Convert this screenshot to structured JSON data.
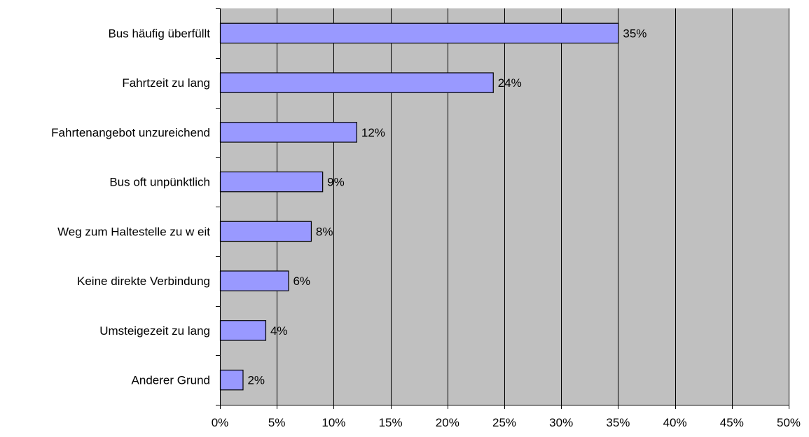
{
  "chart_data": {
    "type": "bar",
    "orientation": "horizontal",
    "categories": [
      "Bus häufig überfüllt",
      "Fahrtzeit zu lang",
      "Fahrtenangebot unzureichend",
      "Bus oft unpünktlich",
      "Weg zum Haltestelle zu w eit",
      "Keine direkte Verbindung",
      "Umsteigezeit zu lang",
      "Anderer Grund"
    ],
    "values": [
      35,
      24,
      12,
      9,
      8,
      6,
      4,
      2
    ],
    "value_labels": [
      "35%",
      "24%",
      "12%",
      "9%",
      "8%",
      "6%",
      "4%",
      "2%"
    ],
    "xlim": [
      0,
      50
    ],
    "x_ticks": [
      0,
      5,
      10,
      15,
      20,
      25,
      30,
      35,
      40,
      45,
      50
    ],
    "x_tick_labels": [
      "0%",
      "5%",
      "10%",
      "15%",
      "20%",
      "25%",
      "30%",
      "35%",
      "40%",
      "45%",
      "50%"
    ],
    "title": "",
    "xlabel": "",
    "ylabel": "",
    "grid": "vertical",
    "legend": "none",
    "colors": {
      "plot_background": "#c0c0c0",
      "bar_fill": "#9999ff",
      "bar_stroke": "#000000",
      "grid_line": "#000000"
    }
  }
}
